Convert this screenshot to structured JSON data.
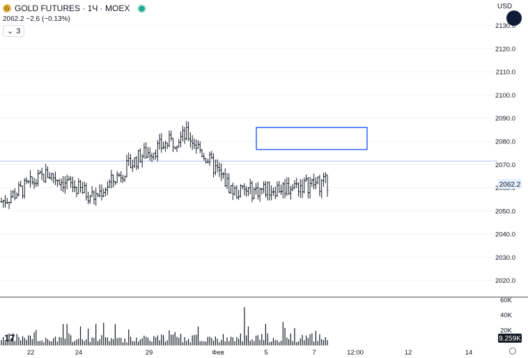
{
  "header": {
    "symbol_title": "GOLD FUTURES · 1Ч · MOEX",
    "last_price": "2062.2",
    "change": "−2.6 (−0.13%)",
    "indicators_count": "3",
    "currency": "USD",
    "coin_glyph": "G"
  },
  "colors": {
    "bars": "#131722",
    "grid": "#f0f3fa",
    "hline": "#a7c7f2",
    "rect": "#2962ff",
    "price_tag": "#e3f0ff",
    "volume_label_bg": "#131722"
  },
  "chart_data": [
    {
      "type": "ohlc",
      "title": "GOLD FUTURES · 1Ч · MOEX",
      "y_axis": {
        "ticks": [
          "2130.0",
          "2120.0",
          "2110.0",
          "2100.0",
          "2090.0",
          "2080.0",
          "2070.0",
          "2060.0",
          "2050.0",
          "2040.0",
          "2030.0",
          "2020.0"
        ],
        "range": [
          2013,
          2141
        ],
        "current_price_label": "2062.2"
      },
      "x_axis": {
        "tick_labels": [
          "22",
          "24",
          "29",
          "Фев",
          "5",
          "7",
          "12:00",
          "12",
          "14"
        ]
      },
      "approx_close_path": [
        {
          "label": "start",
          "close": 2054
        },
        {
          "label": "22",
          "close": 2066
        },
        {
          "label": "24",
          "close": 2056
        },
        {
          "label": "29",
          "close": 2074
        },
        {
          "label": "Фев",
          "close": 2083
        },
        {
          "label": "5",
          "close": 2058
        },
        {
          "label": "7",
          "close": 2060
        },
        {
          "label": "last",
          "close": 2062.2
        }
      ],
      "bar_count": 170,
      "horizontal_line": 2071.5,
      "highlight_box": {
        "price_top": 2086,
        "price_bottom": 2076.5
      }
    },
    {
      "type": "bar",
      "title": "Volume",
      "y_axis": {
        "ticks": [
          "60K",
          "40K",
          "20K"
        ],
        "range": [
          0,
          63000
        ]
      },
      "current_value_label": "9.259K",
      "approx_peak": 50000
    }
  ]
}
